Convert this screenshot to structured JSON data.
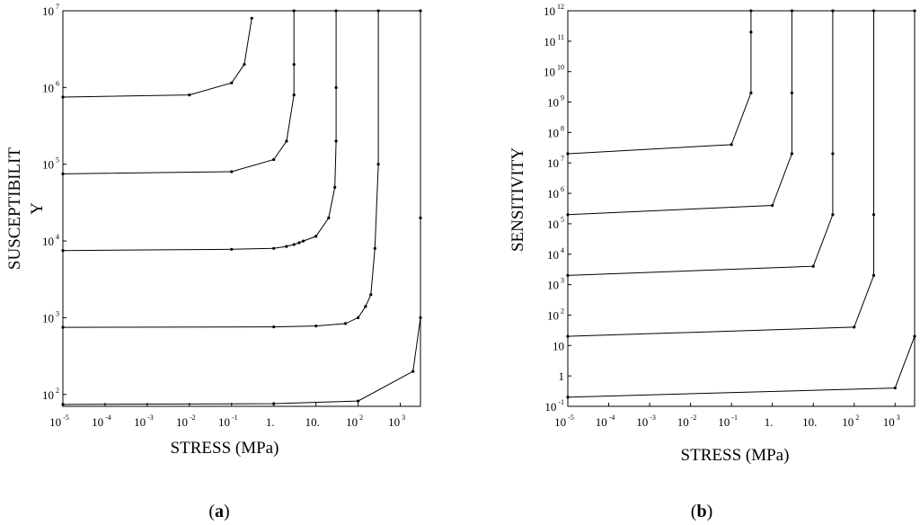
{
  "chart_data": [
    {
      "panel_label": "a",
      "type": "line",
      "xlabel": "STRESS (MPa)",
      "ylabel_lines": [
        "SUSCEPTIBILIT",
        "Y"
      ],
      "xscale": "log",
      "yscale": "log",
      "xlim": [
        1e-05,
        3000
      ],
      "ylim": [
        70,
        10000000
      ],
      "x_ticks": [
        {
          "base": "10",
          "exp": "-5",
          "value": 1e-05
        },
        {
          "base": "10",
          "exp": "-4",
          "value": 0.0001
        },
        {
          "base": "10",
          "exp": "-3",
          "value": 0.001
        },
        {
          "base": "10",
          "exp": "-2",
          "value": 0.01
        },
        {
          "base": "10",
          "exp": "-1",
          "value": 0.1
        },
        {
          "base": "1.",
          "exp": "",
          "value": 1
        },
        {
          "base": "10.",
          "exp": "",
          "value": 10
        },
        {
          "base": "10",
          "exp": "2",
          "value": 100
        },
        {
          "base": "10",
          "exp": "3",
          "value": 1000
        }
      ],
      "y_ticks": [
        {
          "base": "10",
          "exp": "7",
          "value": 10000000
        },
        {
          "base": "10",
          "exp": "6",
          "value": 1000000
        },
        {
          "base": "10",
          "exp": "5",
          "value": 100000
        },
        {
          "base": "10",
          "exp": "4",
          "value": 10000
        },
        {
          "base": "10",
          "exp": "3",
          "value": 1000
        },
        {
          "base": "10",
          "exp": "2",
          "value": 100
        }
      ],
      "series": [
        {
          "x": [
            1e-05,
            0.01,
            0.1,
            0.2,
            0.3
          ],
          "y": [
            750000,
            800000,
            1150000,
            2000000,
            8000000
          ]
        },
        {
          "x": [
            1e-05,
            0.1,
            1,
            2,
            3,
            3,
            3
          ],
          "y": [
            75000,
            80000,
            115000,
            200000,
            800000,
            2000000,
            10000000
          ]
        },
        {
          "x": [
            1e-05,
            0.1,
            1,
            2,
            3,
            4,
            5,
            10,
            20,
            28,
            30,
            30,
            30
          ],
          "y": [
            7500,
            7800,
            8000,
            8500,
            9000,
            9500,
            10000,
            11500,
            20000,
            50000,
            200000,
            1000000,
            10000000
          ]
        },
        {
          "x": [
            1e-05,
            1,
            10,
            50,
            100,
            150,
            200,
            250,
            300,
            300
          ],
          "y": [
            750,
            760,
            780,
            840,
            1000,
            1400,
            2000,
            8000,
            100000,
            10000000
          ]
        },
        {
          "x": [
            1e-05,
            1,
            100,
            2000,
            3000,
            3000,
            3000
          ],
          "y": [
            74,
            76,
            82,
            200,
            1000,
            20000,
            10000000
          ]
        }
      ]
    },
    {
      "panel_label": "b",
      "type": "line",
      "xlabel": "STRESS (MPa)",
      "ylabel": "SENSITIVITY",
      "xscale": "log",
      "yscale": "log",
      "xlim": [
        1e-05,
        3000
      ],
      "ylim": [
        0.1,
        1000000000000
      ],
      "x_ticks": [
        {
          "base": "10",
          "exp": "-5",
          "value": 1e-05
        },
        {
          "base": "10",
          "exp": "-4",
          "value": 0.0001
        },
        {
          "base": "10",
          "exp": "-3",
          "value": 0.001
        },
        {
          "base": "10",
          "exp": "-2",
          "value": 0.01
        },
        {
          "base": "10",
          "exp": "-1",
          "value": 0.1
        },
        {
          "base": "1.",
          "exp": "",
          "value": 1
        },
        {
          "base": "10.",
          "exp": "",
          "value": 10
        },
        {
          "base": "10",
          "exp": "2",
          "value": 100
        },
        {
          "base": "10",
          "exp": "3",
          "value": 1000
        }
      ],
      "y_ticks": [
        {
          "base": "10",
          "exp": "12",
          "value": 1000000000000
        },
        {
          "base": "10",
          "exp": "11",
          "value": 100000000000
        },
        {
          "base": "10",
          "exp": "10",
          "value": 10000000000
        },
        {
          "base": "10",
          "exp": "9",
          "value": 1000000000
        },
        {
          "base": "10",
          "exp": "8",
          "value": 100000000
        },
        {
          "base": "10",
          "exp": "7",
          "value": 10000000
        },
        {
          "base": "10",
          "exp": "6",
          "value": 1000000
        },
        {
          "base": "10",
          "exp": "5",
          "value": 100000
        },
        {
          "base": "10",
          "exp": "4",
          "value": 10000
        },
        {
          "base": "10",
          "exp": "3",
          "value": 1000
        },
        {
          "base": "10",
          "exp": "2",
          "value": 100
        },
        {
          "base": "10",
          "exp": "",
          "value": 10
        },
        {
          "base": "1",
          "exp": "",
          "value": 1
        },
        {
          "base": "10",
          "exp": "-1",
          "value": 0.1
        }
      ],
      "series": [
        {
          "x": [
            1e-05,
            0.1,
            0.3,
            0.3,
            0.3
          ],
          "y": [
            20000000,
            40000000,
            2000000000,
            200000000000,
            1000000000000
          ]
        },
        {
          "x": [
            1e-05,
            1,
            3,
            3,
            3
          ],
          "y": [
            200000,
            400000,
            20000000,
            2000000000,
            1000000000000
          ]
        },
        {
          "x": [
            1e-05,
            10,
            30,
            30,
            30
          ],
          "y": [
            2000,
            4000,
            200000,
            20000000,
            1000000000000
          ]
        },
        {
          "x": [
            1e-05,
            100,
            300,
            300,
            300
          ],
          "y": [
            20,
            40,
            2000,
            200000,
            1000000000000
          ]
        },
        {
          "x": [
            1e-05,
            1000,
            3000,
            3000
          ],
          "y": [
            0.2,
            0.4,
            20,
            1000000000000
          ]
        }
      ]
    }
  ]
}
